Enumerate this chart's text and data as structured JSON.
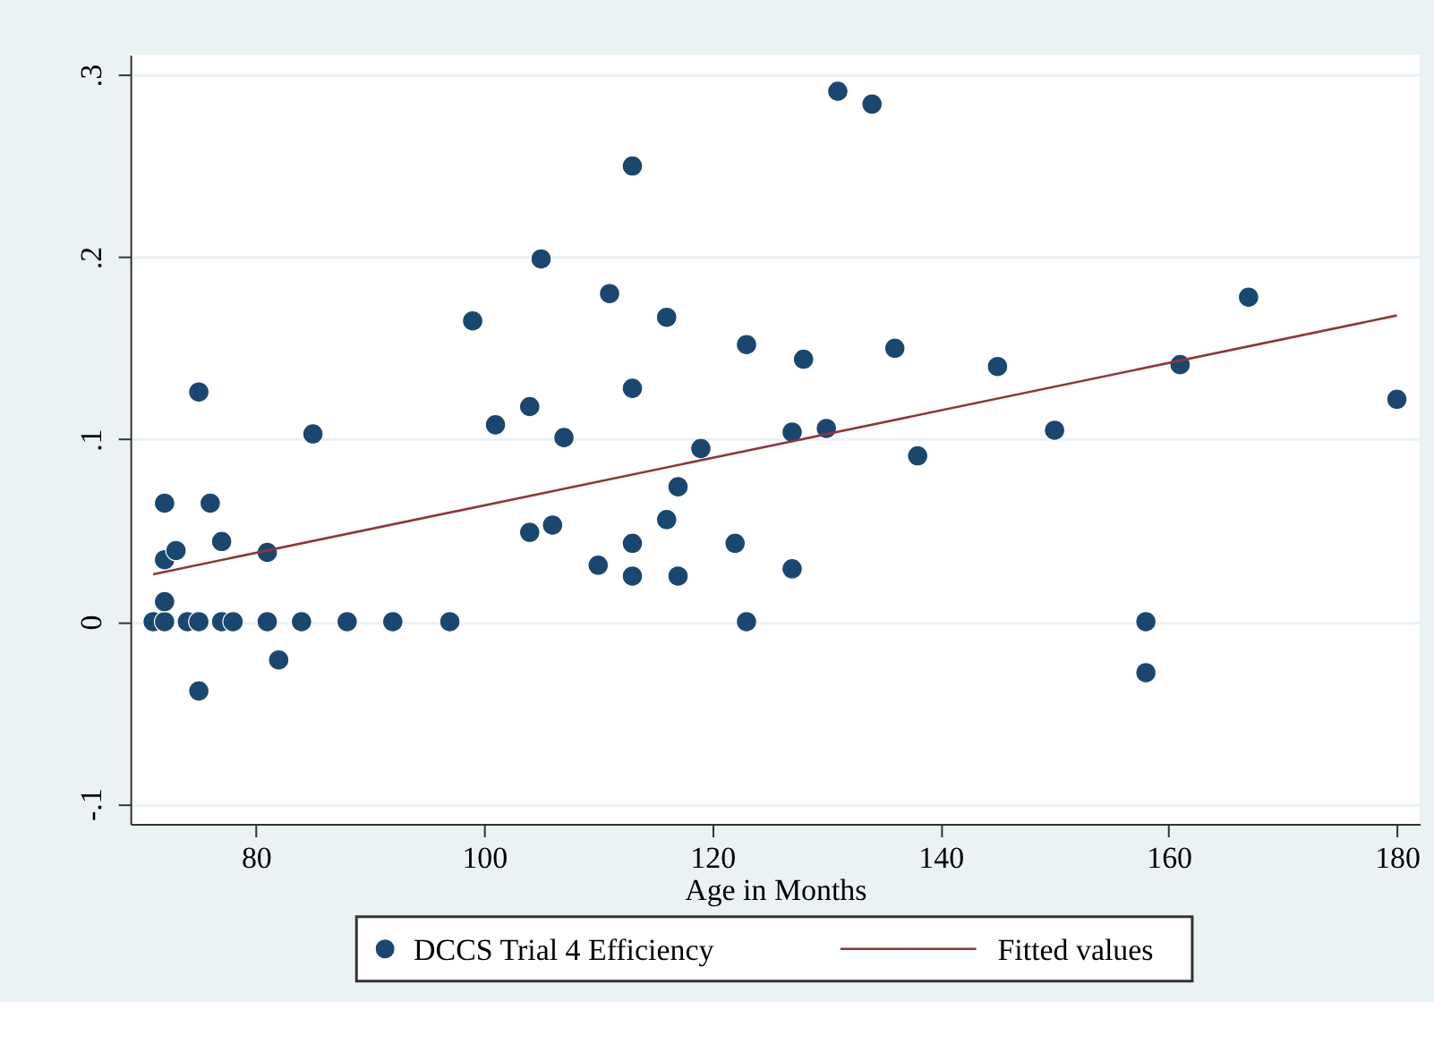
{
  "chart_data": {
    "type": "scatter",
    "xlabel": "Age in Months",
    "xlim": [
      69,
      182
    ],
    "ylim": [
      -0.111,
      0.311
    ],
    "xticks": [
      80,
      100,
      120,
      140,
      160,
      180
    ],
    "yticks": [
      {
        "value": -0.1,
        "label": "-.1"
      },
      0,
      {
        "value": 0.1,
        "label": ".1"
      },
      {
        "value": 0.2,
        "label": ".2"
      },
      {
        "value": 0.3,
        "label": ".3"
      }
    ],
    "grid": "y",
    "legend": "bottom",
    "series": [
      {
        "name": "DCCS Trial 4 Efficiency",
        "marker": "circle",
        "color": "#1a476f",
        "x": [
          71,
          72,
          72,
          72,
          72,
          73,
          74,
          75,
          75,
          76,
          77,
          77,
          78,
          81,
          81,
          82,
          84,
          88,
          92,
          97,
          85,
          101,
          104,
          107,
          104,
          106,
          110,
          113,
          113,
          116,
          117,
          117,
          119,
          122,
          123,
          75,
          99,
          105,
          111,
          113,
          113,
          116,
          123,
          131,
          134,
          128,
          136,
          127,
          130,
          138,
          145,
          150,
          161,
          167,
          180,
          127,
          158,
          158
        ],
        "values": [
          0,
          0,
          0.011,
          0.065,
          0.034,
          0.039,
          0,
          0,
          -0.038,
          0.065,
          0.044,
          0,
          0,
          0,
          0.038,
          -0.021,
          0,
          0,
          0,
          0,
          0.103,
          0.108,
          0.118,
          0.101,
          0.049,
          0.053,
          0.031,
          0.043,
          0.025,
          0.056,
          0.074,
          0.025,
          0.095,
          0.043,
          0,
          0.126,
          0.165,
          0.199,
          0.18,
          0.25,
          0.128,
          0.167,
          0.152,
          0.291,
          0.284,
          0.144,
          0.15,
          0.104,
          0.106,
          0.091,
          0.14,
          0.105,
          0.141,
          0.178,
          0.122,
          0.029,
          0,
          -0.028
        ]
      },
      {
        "name": "Fitted values",
        "type": "line",
        "marker": "none",
        "line_style": "solid",
        "color": "#90353b",
        "x": [
          71,
          180
        ],
        "values": [
          0.026,
          0.168
        ]
      }
    ]
  }
}
